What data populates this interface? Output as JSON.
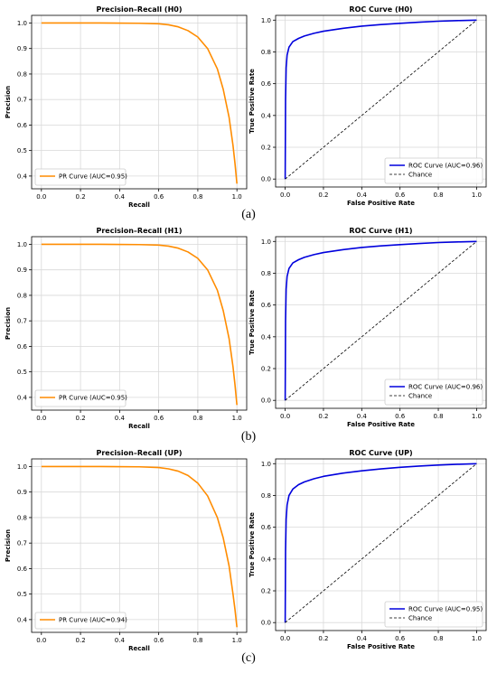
{
  "panel_labels": [
    "(a)",
    "(b)",
    "(c)"
  ],
  "chart_data": [
    {
      "type": "line",
      "title": "Precision–Recall (H0)",
      "xlabel": "Recall",
      "ylabel": "Precision",
      "xlim": [
        -0.05,
        1.05
      ],
      "ylim": [
        0.35,
        1.03
      ],
      "xticks": [
        "0.0",
        "0.2",
        "0.4",
        "0.6",
        "0.8",
        "1.0"
      ],
      "yticks": [
        "0.4",
        "0.5",
        "0.6",
        "0.7",
        "0.8",
        "0.9",
        "1.0"
      ],
      "grid": true,
      "legend_position": "lower-left",
      "series": [
        {
          "name": "PR Curve (AUC=0.95)",
          "color": "#ff8c00",
          "dash": false,
          "x": [
            0.0,
            0.3,
            0.5,
            0.6,
            0.65,
            0.7,
            0.75,
            0.8,
            0.85,
            0.9,
            0.93,
            0.96,
            0.98,
            0.99,
            1.0
          ],
          "y": [
            1.0,
            1.0,
            0.999,
            0.997,
            0.993,
            0.985,
            0.97,
            0.945,
            0.9,
            0.82,
            0.74,
            0.63,
            0.52,
            0.45,
            0.37
          ]
        }
      ]
    },
    {
      "type": "line",
      "title": "ROC Curve (H0)",
      "xlabel": "False Positive Rate",
      "ylabel": "True Positive Rate",
      "xlim": [
        -0.05,
        1.05
      ],
      "ylim": [
        -0.05,
        1.03
      ],
      "xticks": [
        "0.0",
        "0.2",
        "0.4",
        "0.6",
        "0.8",
        "1.0"
      ],
      "yticks": [
        "0.0",
        "0.2",
        "0.4",
        "0.6",
        "0.8",
        "1.0"
      ],
      "grid": true,
      "legend_position": "lower-right",
      "series": [
        {
          "name": "ROC Curve (AUC=0.96)",
          "color": "#0000dd",
          "dash": false,
          "x": [
            0.0,
            0.002,
            0.005,
            0.01,
            0.02,
            0.04,
            0.07,
            0.1,
            0.15,
            0.2,
            0.3,
            0.4,
            0.5,
            0.6,
            0.7,
            0.8,
            0.9,
            1.0
          ],
          "y": [
            0.0,
            0.5,
            0.7,
            0.78,
            0.83,
            0.865,
            0.885,
            0.9,
            0.917,
            0.93,
            0.948,
            0.962,
            0.972,
            0.98,
            0.987,
            0.993,
            0.997,
            1.0
          ]
        },
        {
          "name": "Chance",
          "color": "#000000",
          "dash": true,
          "x": [
            0.0,
            1.0
          ],
          "y": [
            0.0,
            1.0
          ]
        }
      ]
    },
    {
      "type": "line",
      "title": "Precision–Recall (H1)",
      "xlabel": "Recall",
      "ylabel": "Precision",
      "xlim": [
        -0.05,
        1.05
      ],
      "ylim": [
        0.35,
        1.03
      ],
      "xticks": [
        "0.0",
        "0.2",
        "0.4",
        "0.6",
        "0.8",
        "1.0"
      ],
      "yticks": [
        "0.4",
        "0.5",
        "0.6",
        "0.7",
        "0.8",
        "0.9",
        "1.0"
      ],
      "grid": true,
      "legend_position": "lower-left",
      "series": [
        {
          "name": "PR Curve (AUC=0.95)",
          "color": "#ff8c00",
          "dash": false,
          "x": [
            0.0,
            0.3,
            0.5,
            0.6,
            0.65,
            0.7,
            0.75,
            0.8,
            0.85,
            0.9,
            0.93,
            0.96,
            0.98,
            0.99,
            1.0
          ],
          "y": [
            1.0,
            1.0,
            0.999,
            0.997,
            0.993,
            0.985,
            0.97,
            0.945,
            0.9,
            0.82,
            0.74,
            0.63,
            0.52,
            0.45,
            0.37
          ]
        }
      ]
    },
    {
      "type": "line",
      "title": "ROC Curve (H1)",
      "xlabel": "False Positive Rate",
      "ylabel": "True Positive Rate",
      "xlim": [
        -0.05,
        1.05
      ],
      "ylim": [
        -0.05,
        1.03
      ],
      "xticks": [
        "0.0",
        "0.2",
        "0.4",
        "0.6",
        "0.8",
        "1.0"
      ],
      "yticks": [
        "0.0",
        "0.2",
        "0.4",
        "0.6",
        "0.8",
        "1.0"
      ],
      "grid": true,
      "legend_position": "lower-right",
      "series": [
        {
          "name": "ROC Curve (AUC=0.96)",
          "color": "#0000dd",
          "dash": false,
          "x": [
            0.0,
            0.002,
            0.005,
            0.01,
            0.02,
            0.04,
            0.07,
            0.1,
            0.15,
            0.2,
            0.3,
            0.4,
            0.5,
            0.6,
            0.7,
            0.8,
            0.9,
            1.0
          ],
          "y": [
            0.0,
            0.5,
            0.7,
            0.78,
            0.83,
            0.865,
            0.885,
            0.9,
            0.917,
            0.93,
            0.948,
            0.962,
            0.972,
            0.98,
            0.987,
            0.993,
            0.997,
            1.0
          ]
        },
        {
          "name": "Chance",
          "color": "#000000",
          "dash": true,
          "x": [
            0.0,
            1.0
          ],
          "y": [
            0.0,
            1.0
          ]
        }
      ]
    },
    {
      "type": "line",
      "title": "Precision–Recall (UP)",
      "xlabel": "Recall",
      "ylabel": "Precision",
      "xlim": [
        -0.05,
        1.05
      ],
      "ylim": [
        0.35,
        1.03
      ],
      "xticks": [
        "0.0",
        "0.2",
        "0.4",
        "0.6",
        "0.8",
        "1.0"
      ],
      "yticks": [
        "0.4",
        "0.5",
        "0.6",
        "0.7",
        "0.8",
        "0.9",
        "1.0"
      ],
      "grid": true,
      "legend_position": "lower-left",
      "series": [
        {
          "name": "PR Curve (AUC=0.94)",
          "color": "#ff8c00",
          "dash": false,
          "x": [
            0.0,
            0.3,
            0.5,
            0.6,
            0.65,
            0.7,
            0.75,
            0.8,
            0.85,
            0.9,
            0.93,
            0.96,
            0.98,
            0.99,
            1.0
          ],
          "y": [
            1.0,
            1.0,
            0.999,
            0.996,
            0.991,
            0.982,
            0.965,
            0.935,
            0.885,
            0.8,
            0.72,
            0.61,
            0.5,
            0.44,
            0.37
          ]
        }
      ]
    },
    {
      "type": "line",
      "title": "ROC Curve (UP)",
      "xlabel": "False Positive Rate",
      "ylabel": "True Positive Rate",
      "xlim": [
        -0.05,
        1.05
      ],
      "ylim": [
        -0.05,
        1.03
      ],
      "xticks": [
        "0.0",
        "0.2",
        "0.4",
        "0.6",
        "0.8",
        "1.0"
      ],
      "yticks": [
        "0.0",
        "0.2",
        "0.4",
        "0.6",
        "0.8",
        "1.0"
      ],
      "grid": true,
      "legend_position": "lower-right",
      "series": [
        {
          "name": "ROC Curve (AUC=0.95)",
          "color": "#0000dd",
          "dash": false,
          "x": [
            0.0,
            0.002,
            0.005,
            0.01,
            0.02,
            0.04,
            0.07,
            0.1,
            0.15,
            0.2,
            0.3,
            0.4,
            0.5,
            0.6,
            0.7,
            0.8,
            0.9,
            1.0
          ],
          "y": [
            0.0,
            0.45,
            0.65,
            0.74,
            0.8,
            0.84,
            0.868,
            0.885,
            0.905,
            0.92,
            0.94,
            0.955,
            0.967,
            0.977,
            0.985,
            0.991,
            0.996,
            1.0
          ]
        },
        {
          "name": "Chance",
          "color": "#000000",
          "dash": true,
          "x": [
            0.0,
            1.0
          ],
          "y": [
            0.0,
            1.0
          ]
        }
      ]
    }
  ]
}
